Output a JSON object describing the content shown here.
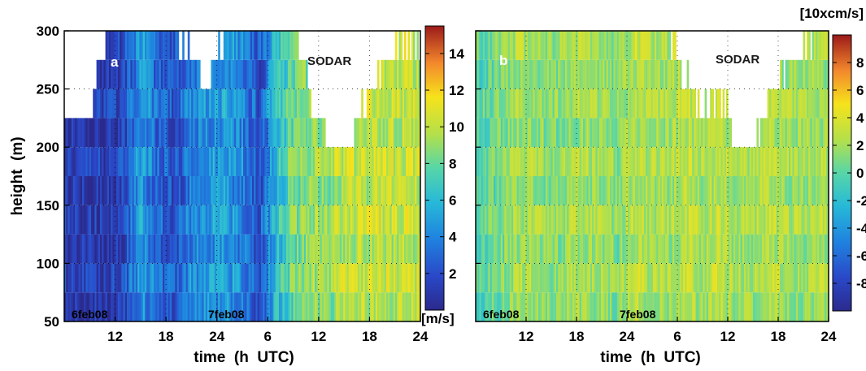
{
  "chart_data": [
    {
      "type": "heatmap",
      "panel": "a",
      "annotation": "SODAR",
      "xlabel": "time  (h  UTC)",
      "ylabel": "height  (m)",
      "xlim": [
        6,
        48
      ],
      "ylim": [
        50,
        300
      ],
      "x_ticks": [
        "12",
        "18",
        "24",
        "6",
        "12",
        "18",
        "24"
      ],
      "y_ticks": [
        "50",
        "100",
        "150",
        "200",
        "250",
        "300"
      ],
      "date_labels": [
        "6feb08",
        "7feb08"
      ],
      "colorbar": {
        "unit": "[m/s]",
        "range": [
          0,
          15.5
        ],
        "ticks": [
          "2",
          "4",
          "6",
          "8",
          "10",
          "12",
          "14"
        ],
        "colormap": "jet"
      },
      "x": [
        7,
        9,
        11,
        13,
        15,
        17,
        19,
        21,
        23,
        25,
        27,
        29,
        31,
        33,
        35,
        37,
        39,
        41,
        43,
        45,
        47
      ],
      "y": [
        75,
        100,
        125,
        150,
        175,
        200,
        225,
        250,
        275
      ],
      "z_profile_by_time": [
        1,
        1,
        1,
        1.5,
        5,
        3,
        2,
        4,
        4.5,
        5,
        4,
        2,
        6,
        8,
        9,
        9,
        10,
        10,
        10,
        10,
        10
      ],
      "data_top_height_by_time": [
        230,
        230,
        300,
        300,
        300,
        300,
        300,
        280,
        250,
        300,
        300,
        300,
        300,
        300,
        250,
        205,
        195,
        230,
        260,
        280,
        290
      ]
    },
    {
      "type": "heatmap",
      "panel": "b",
      "annotation": "SODAR",
      "xlabel": "time  (h  UTC)",
      "ylabel": "",
      "xlim": [
        6,
        48
      ],
      "ylim": [
        50,
        300
      ],
      "x_ticks": [
        "12",
        "18",
        "24",
        "6",
        "12",
        "18",
        "24"
      ],
      "date_labels": [
        "6feb08",
        "7feb08"
      ],
      "colorbar": {
        "unit": "[10xcm/s]",
        "range": [
          -10,
          10
        ],
        "ticks": [
          "8",
          "6",
          "4",
          "2",
          "0",
          "-2",
          "-4",
          "-6",
          "-8"
        ],
        "colormap": "jet"
      },
      "x": [
        7,
        9,
        11,
        13,
        15,
        17,
        19,
        21,
        23,
        25,
        27,
        29,
        31,
        33,
        35,
        37,
        39,
        41,
        43,
        45,
        47
      ],
      "y": [
        75,
        100,
        125,
        150,
        175,
        200,
        225,
        250,
        275
      ],
      "z_profile_by_time": [
        0,
        1,
        2,
        2,
        1,
        2,
        2,
        2,
        1,
        3,
        2,
        2,
        3,
        2,
        3,
        2,
        2,
        3,
        2,
        2,
        2
      ],
      "data_top_height_by_time": [
        300,
        300,
        300,
        300,
        300,
        300,
        300,
        300,
        300,
        300,
        300,
        300,
        260,
        230,
        250,
        205,
        195,
        250,
        270,
        285,
        300
      ]
    }
  ]
}
